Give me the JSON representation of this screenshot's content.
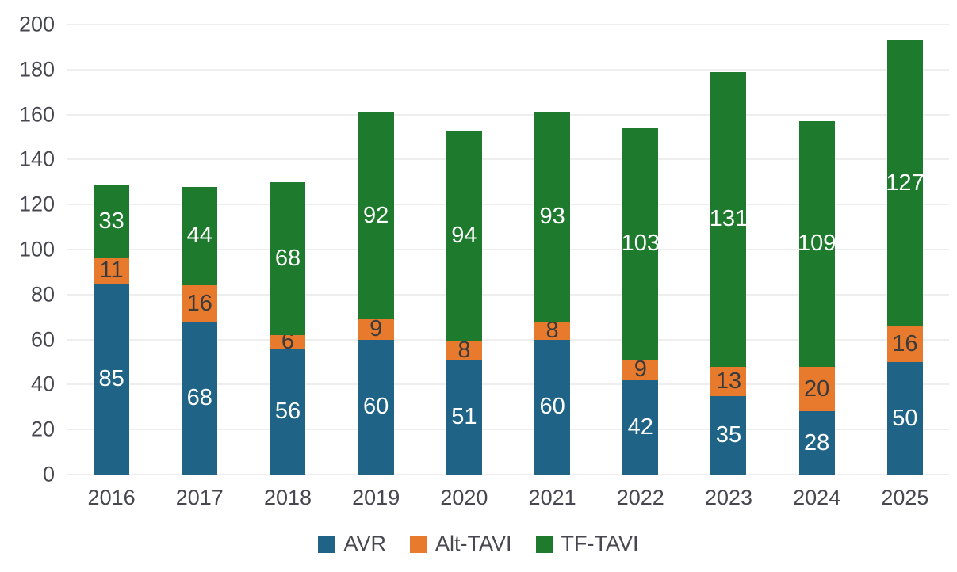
{
  "chart_data": {
    "type": "bar",
    "stacked": true,
    "title": "",
    "xlabel": "",
    "ylabel": "",
    "categories": [
      "2016",
      "2017",
      "2018",
      "2019",
      "2020",
      "2021",
      "2022",
      "2023",
      "2024",
      "2025"
    ],
    "series": [
      {
        "name": "AVR",
        "color": "#1f6487",
        "label_color": "#ffffff",
        "values": [
          85,
          68,
          56,
          60,
          51,
          60,
          42,
          35,
          28,
          50
        ]
      },
      {
        "name": "Alt-TAVI",
        "color": "#e87a2e",
        "label_color": "#3b3b3b",
        "values": [
          11,
          16,
          6,
          9,
          8,
          8,
          9,
          13,
          20,
          16
        ]
      },
      {
        "name": "TF-TAVI",
        "color": "#1e7a2c",
        "label_color": "#ffffff",
        "values": [
          33,
          44,
          68,
          92,
          94,
          93,
          103,
          131,
          109,
          127
        ]
      }
    ],
    "totals": [
      129,
      128,
      130,
      161,
      153,
      161,
      154,
      179,
      157,
      193
    ],
    "y_axis": {
      "min": 0,
      "max": 200,
      "step": 20,
      "tick_labels": [
        "0",
        "20",
        "40",
        "60",
        "80",
        "100",
        "120",
        "140",
        "160",
        "180",
        "200"
      ]
    },
    "grid": true,
    "gridline_color": "#dedede",
    "axis_text_color": "#47474f",
    "legend_position": "bottom",
    "legend_labels": [
      "AVR",
      "Alt-TAVI",
      "TF-TAVI"
    ],
    "data_labels_visible": true
  }
}
